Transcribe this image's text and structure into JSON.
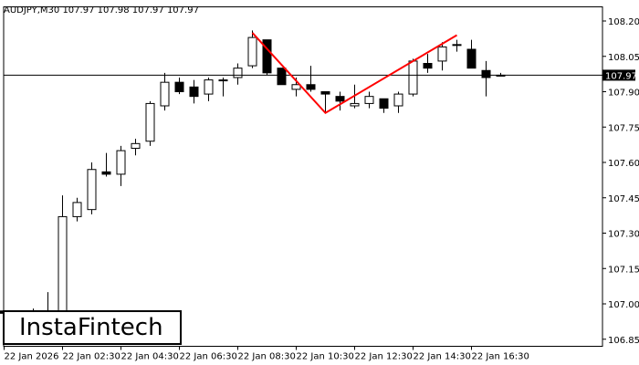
{
  "chart_data": {
    "type": "candlestick",
    "title": "AUDJPY,M30  107.97 107.98 107.97 107.97",
    "symbol": "AUDJPY",
    "timeframe": "M30",
    "ohlc_header": "107.97 107.98 107.97 107.97",
    "current_price_label": "107.97",
    "current_price": 107.97,
    "ylim": [
      106.82,
      108.26
    ],
    "y_ticks": [
      "108.20",
      "108.05",
      "107.90",
      "107.75",
      "107.60",
      "107.45",
      "107.30",
      "107.15",
      "107.00",
      "106.85"
    ],
    "y_tick_values": [
      108.2,
      108.05,
      107.9,
      107.75,
      107.6,
      107.45,
      107.3,
      107.15,
      107.0,
      106.85
    ],
    "x_ticks": [
      "22 Jan 2026",
      "22 Jan 02:30",
      "22 Jan 04:30",
      "22 Jan 06:30",
      "22 Jan 08:30",
      "22 Jan 10:30",
      "22 Jan 12:30",
      "22 Jan 14:30",
      "22 Jan 16:30"
    ],
    "candles": [
      {
        "o": 106.97,
        "h": 106.97,
        "l": 106.9,
        "c": 106.96
      },
      {
        "o": 106.96,
        "h": 106.96,
        "l": 106.9,
        "c": 106.95
      },
      {
        "o": 106.95,
        "h": 106.98,
        "l": 106.93,
        "c": 106.97
      },
      {
        "o": 106.95,
        "h": 107.05,
        "l": 106.94,
        "c": 106.96
      },
      {
        "o": 106.95,
        "h": 107.46,
        "l": 106.93,
        "c": 107.37
      },
      {
        "o": 107.37,
        "h": 107.45,
        "l": 107.35,
        "c": 107.43
      },
      {
        "o": 107.4,
        "h": 107.6,
        "l": 107.38,
        "c": 107.57
      },
      {
        "o": 107.56,
        "h": 107.64,
        "l": 107.54,
        "c": 107.55
      },
      {
        "o": 107.55,
        "h": 107.67,
        "l": 107.5,
        "c": 107.65
      },
      {
        "o": 107.66,
        "h": 107.7,
        "l": 107.63,
        "c": 107.68
      },
      {
        "o": 107.69,
        "h": 107.86,
        "l": 107.67,
        "c": 107.85
      },
      {
        "o": 107.84,
        "h": 107.98,
        "l": 107.82,
        "c": 107.94
      },
      {
        "o": 107.94,
        "h": 107.96,
        "l": 107.89,
        "c": 107.9
      },
      {
        "o": 107.92,
        "h": 107.95,
        "l": 107.85,
        "c": 107.88
      },
      {
        "o": 107.89,
        "h": 107.96,
        "l": 107.86,
        "c": 107.95
      },
      {
        "o": 107.95,
        "h": 107.96,
        "l": 107.88,
        "c": 107.95
      },
      {
        "o": 107.96,
        "h": 108.02,
        "l": 107.93,
        "c": 108.0
      },
      {
        "o": 108.01,
        "h": 108.16,
        "l": 108.0,
        "c": 108.13
      },
      {
        "o": 108.12,
        "h": 108.12,
        "l": 107.97,
        "c": 107.98
      },
      {
        "o": 108.0,
        "h": 108.0,
        "l": 107.93,
        "c": 107.93
      },
      {
        "o": 107.91,
        "h": 107.96,
        "l": 107.88,
        "c": 107.93
      },
      {
        "o": 107.93,
        "h": 108.01,
        "l": 107.9,
        "c": 107.91
      },
      {
        "o": 107.9,
        "h": 107.9,
        "l": 107.81,
        "c": 107.89
      },
      {
        "o": 107.88,
        "h": 107.9,
        "l": 107.82,
        "c": 107.86
      },
      {
        "o": 107.84,
        "h": 107.93,
        "l": 107.83,
        "c": 107.85
      },
      {
        "o": 107.85,
        "h": 107.9,
        "l": 107.83,
        "c": 107.88
      },
      {
        "o": 107.87,
        "h": 107.87,
        "l": 107.81,
        "c": 107.83
      },
      {
        "o": 107.84,
        "h": 107.9,
        "l": 107.81,
        "c": 107.89
      },
      {
        "o": 107.89,
        "h": 108.04,
        "l": 107.88,
        "c": 108.03
      },
      {
        "o": 108.02,
        "h": 108.06,
        "l": 107.98,
        "c": 108.0
      },
      {
        "o": 108.03,
        "h": 108.11,
        "l": 107.99,
        "c": 108.09
      },
      {
        "o": 108.1,
        "h": 108.12,
        "l": 108.07,
        "c": 108.1
      },
      {
        "o": 108.08,
        "h": 108.12,
        "l": 108.0,
        "c": 108.0
      },
      {
        "o": 107.99,
        "h": 108.03,
        "l": 107.88,
        "c": 107.96
      },
      {
        "o": 107.97,
        "h": 107.98,
        "l": 107.97,
        "c": 107.97
      }
    ],
    "pattern_line": [
      {
        "candle": 17,
        "price": 108.15
      },
      {
        "candle": 22,
        "price": 107.81
      },
      {
        "candle": 31,
        "price": 108.14
      }
    ],
    "pattern_color": "#ff0000",
    "bull_color": "#ffffff",
    "bear_color": "#000000",
    "grid": false
  },
  "branding": {
    "logo_text": "InstaFintech"
  }
}
